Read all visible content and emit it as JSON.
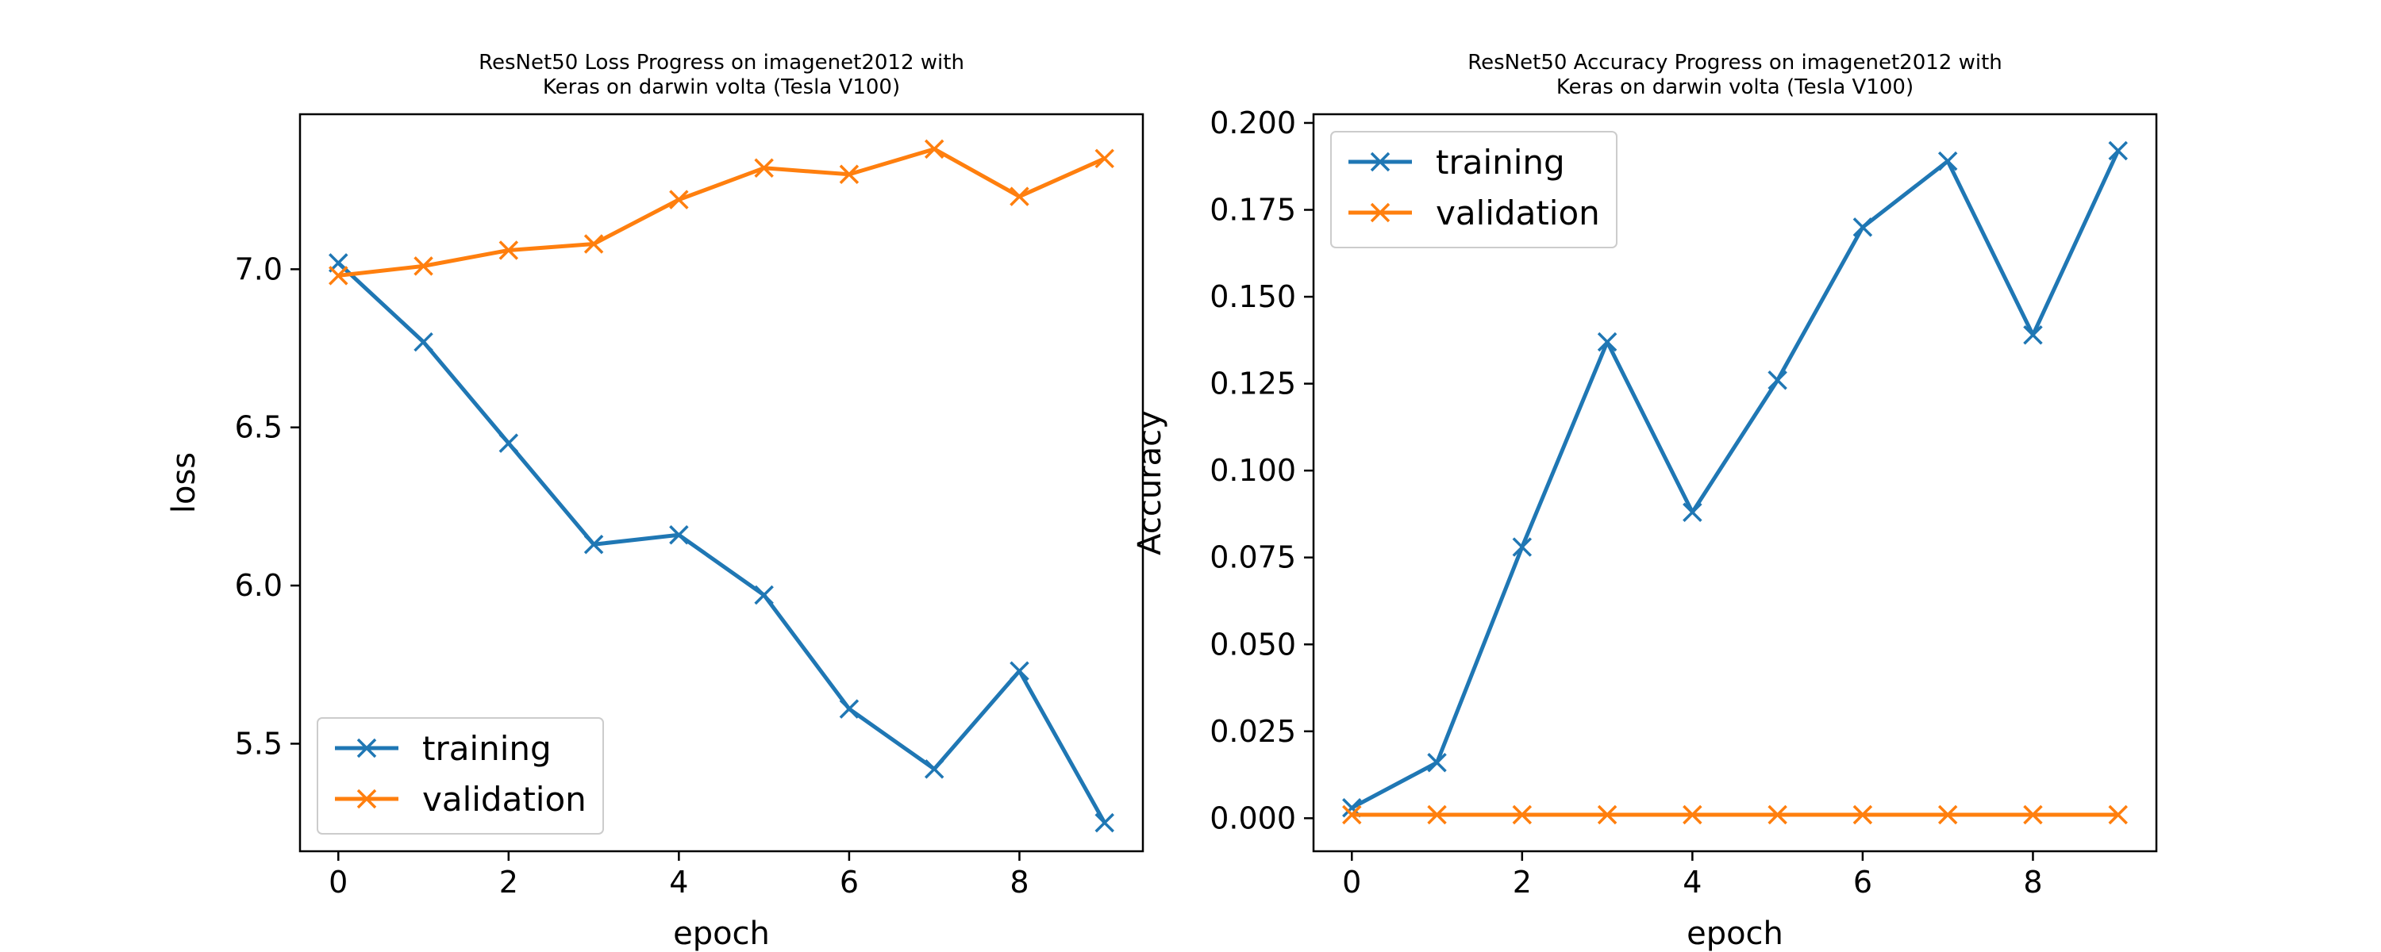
{
  "chart_data": [
    {
      "type": "line",
      "title_line1": "ResNet50 Loss Progress on imagenet2012 with",
      "title_line2": "Keras on darwin volta (Tesla V100)",
      "xlabel": "epoch",
      "ylabel": "loss",
      "x": [
        0,
        1,
        2,
        3,
        4,
        5,
        6,
        7,
        8,
        9
      ],
      "xlim": [
        -0.45,
        9.45
      ],
      "ylim": [
        5.16,
        7.49
      ],
      "xticks": [
        0,
        2,
        4,
        6,
        8
      ],
      "yticks": [
        5.5,
        6.0,
        6.5,
        7.0
      ],
      "ytick_labels": [
        "5.5",
        "6.0",
        "6.5",
        "7.0"
      ],
      "grid": false,
      "legend_position": "lower-left",
      "series": [
        {
          "name": "training",
          "color": "#1f77b4",
          "values": [
            7.02,
            6.77,
            6.45,
            6.13,
            6.16,
            5.97,
            5.61,
            5.42,
            5.73,
            5.25
          ]
        },
        {
          "name": "validation",
          "color": "#ff7f0e",
          "values": [
            6.98,
            7.01,
            7.06,
            7.08,
            7.22,
            7.32,
            7.3,
            7.38,
            7.23,
            7.35
          ]
        }
      ]
    },
    {
      "type": "line",
      "title_line1": "ResNet50 Accuracy Progress on imagenet2012 with",
      "title_line2": "Keras on darwin volta (Tesla V100)",
      "xlabel": "epoch",
      "ylabel": "Accuracy",
      "x": [
        0,
        1,
        2,
        3,
        4,
        5,
        6,
        7,
        8,
        9
      ],
      "xlim": [
        -0.45,
        9.45
      ],
      "ylim": [
        -0.0095,
        0.2025
      ],
      "xticks": [
        0,
        2,
        4,
        6,
        8
      ],
      "yticks": [
        0.0,
        0.025,
        0.05,
        0.075,
        0.1,
        0.125,
        0.15,
        0.175,
        0.2
      ],
      "ytick_labels": [
        "0.000",
        "0.025",
        "0.050",
        "0.075",
        "0.100",
        "0.125",
        "0.150",
        "0.175",
        "0.200"
      ],
      "grid": false,
      "legend_position": "upper-left",
      "series": [
        {
          "name": "training",
          "color": "#1f77b4",
          "values": [
            0.003,
            0.016,
            0.078,
            0.137,
            0.088,
            0.126,
            0.17,
            0.189,
            0.139,
            0.192
          ]
        },
        {
          "name": "validation",
          "color": "#ff7f0e",
          "values": [
            0.001,
            0.001,
            0.001,
            0.001,
            0.001,
            0.001,
            0.001,
            0.001,
            0.001,
            0.001
          ]
        }
      ]
    }
  ]
}
